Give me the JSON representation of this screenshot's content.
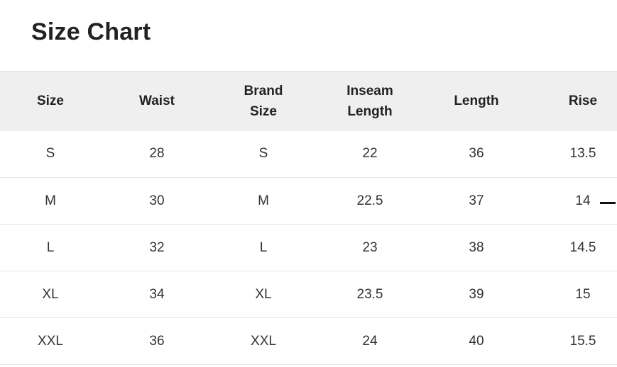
{
  "title": "Size Chart",
  "headers": [
    [
      "Size"
    ],
    [
      "Waist"
    ],
    [
      "Brand",
      "Size"
    ],
    [
      "Inseam",
      "Length"
    ],
    [
      "Length"
    ],
    [
      "Rise"
    ]
  ],
  "rows": [
    [
      "S",
      "28",
      "S",
      "22",
      "36",
      "13.5"
    ],
    [
      "M",
      "30",
      "M",
      "22.5",
      "37",
      "14"
    ],
    [
      "L",
      "32",
      "L",
      "23",
      "38",
      "14.5"
    ],
    [
      "XL",
      "34",
      "XL",
      "23.5",
      "39",
      "15"
    ],
    [
      "XXL",
      "36",
      "XXL",
      "24",
      "40",
      "15.5"
    ]
  ]
}
